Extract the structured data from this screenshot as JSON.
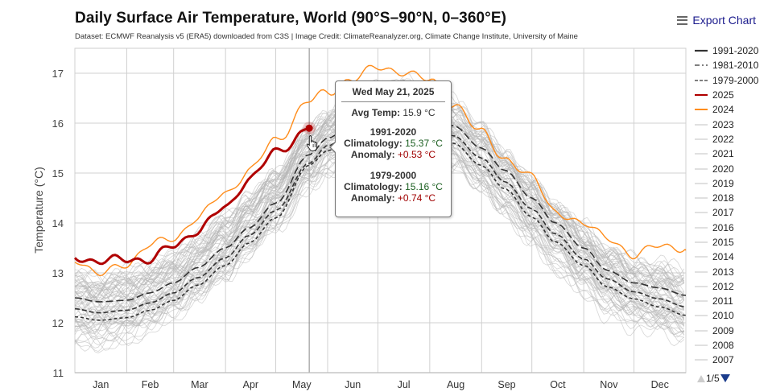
{
  "header": {
    "title": "Daily Surface Air Temperature, World (90°S–90°N, 0–360°E)",
    "subtitle": "Dataset: ECMWF Reanalysis v5 (ERA5) downloaded from C3S | Image Credit: ClimateReanalyzer.org, Climate Change Institute, University of Maine",
    "export_label": "Export Chart",
    "export_icon": "hamburger-menu-icon"
  },
  "legend": {
    "items": [
      {
        "label": "1991-2020",
        "color": "#333333",
        "style": "solid-thick"
      },
      {
        "label": "1981-2010",
        "color": "#333333",
        "style": "dash-dot"
      },
      {
        "label": "1979-2000",
        "color": "#333333",
        "style": "short-dash"
      },
      {
        "label": "2025",
        "color": "#b00000",
        "style": "solid-thick"
      },
      {
        "label": "2024",
        "color": "#ff8c1a",
        "style": "solid"
      },
      {
        "label": "2023",
        "color": "#cccccc",
        "style": "solid"
      },
      {
        "label": "2022",
        "color": "#cccccc",
        "style": "solid"
      },
      {
        "label": "2021",
        "color": "#cccccc",
        "style": "solid"
      },
      {
        "label": "2020",
        "color": "#cccccc",
        "style": "solid"
      },
      {
        "label": "2019",
        "color": "#cccccc",
        "style": "solid"
      },
      {
        "label": "2018",
        "color": "#cccccc",
        "style": "solid"
      },
      {
        "label": "2017",
        "color": "#cccccc",
        "style": "solid"
      },
      {
        "label": "2016",
        "color": "#cccccc",
        "style": "solid"
      },
      {
        "label": "2015",
        "color": "#cccccc",
        "style": "solid"
      },
      {
        "label": "2014",
        "color": "#cccccc",
        "style": "solid"
      },
      {
        "label": "2013",
        "color": "#cccccc",
        "style": "solid"
      },
      {
        "label": "2012",
        "color": "#cccccc",
        "style": "solid"
      },
      {
        "label": "2011",
        "color": "#cccccc",
        "style": "solid"
      },
      {
        "label": "2010",
        "color": "#cccccc",
        "style": "solid"
      },
      {
        "label": "2009",
        "color": "#cccccc",
        "style": "solid"
      },
      {
        "label": "2008",
        "color": "#cccccc",
        "style": "solid"
      },
      {
        "label": "2007",
        "color": "#cccccc",
        "style": "solid"
      }
    ],
    "page_indicator": "1/5"
  },
  "tooltip": {
    "date": "Wed May 21, 2025",
    "avg_label": "Avg Temp:",
    "avg_value": "15.9 °C",
    "blocks": [
      {
        "period": "1991-2020",
        "clim_label": "Climatology:",
        "clim_value": "15.37 °C",
        "anom_label": "Anomaly:",
        "anom_value": "+0.53 °C"
      },
      {
        "period": "1979-2000",
        "clim_label": "Climatology:",
        "clim_value": "15.16 °C",
        "anom_label": "Anomaly:",
        "anom_value": "+0.74 °C"
      }
    ]
  },
  "chart_data": {
    "type": "line",
    "title": "Daily Surface Air Temperature, World (90°S–90°N, 0–360°E)",
    "xlabel": "",
    "ylabel": "Temperature (°C)",
    "ylim": [
      11,
      17.5
    ],
    "yticks": [
      11,
      12,
      13,
      14,
      15,
      16,
      17
    ],
    "xlim_day_of_year": [
      1,
      366
    ],
    "x_month_labels": [
      "Jan",
      "Feb",
      "Mar",
      "Apr",
      "May",
      "Jun",
      "Jul",
      "Aug",
      "Sep",
      "Oct",
      "Nov",
      "Dec"
    ],
    "month_start_days": [
      1,
      32,
      60,
      91,
      121,
      152,
      182,
      213,
      244,
      274,
      305,
      335,
      366
    ],
    "grid": true,
    "legend_position": "right",
    "hover_day": 141,
    "hover_value": 15.9,
    "anchor_days": [
      1,
      15,
      32,
      46,
      60,
      74,
      91,
      105,
      121,
      141,
      152,
      166,
      182,
      196,
      213,
      227,
      244,
      258,
      274,
      288,
      305,
      319,
      335,
      350,
      366
    ],
    "series": [
      {
        "name": "1991-2020",
        "style": "climatology",
        "values": [
          12.5,
          12.42,
          12.45,
          12.6,
          12.8,
          13.1,
          13.5,
          13.9,
          14.4,
          15.37,
          15.7,
          15.95,
          16.15,
          16.25,
          16.15,
          15.95,
          15.5,
          15.05,
          14.5,
          14.0,
          13.5,
          13.05,
          12.8,
          12.7,
          12.55
        ]
      },
      {
        "name": "1981-2010",
        "style": "climatology",
        "values": [
          12.28,
          12.2,
          12.25,
          12.4,
          12.6,
          12.9,
          13.3,
          13.75,
          14.25,
          15.2,
          15.55,
          15.8,
          16.0,
          16.08,
          15.98,
          15.75,
          15.3,
          14.82,
          14.28,
          13.78,
          13.28,
          12.88,
          12.62,
          12.48,
          12.32
        ]
      },
      {
        "name": "1979-2000",
        "style": "climatology",
        "values": [
          12.12,
          12.05,
          12.1,
          12.25,
          12.45,
          12.75,
          13.15,
          13.6,
          14.1,
          15.16,
          15.45,
          15.7,
          15.92,
          15.98,
          15.85,
          15.6,
          15.15,
          14.68,
          14.12,
          13.62,
          13.15,
          12.72,
          12.48,
          12.32,
          12.15
        ]
      },
      {
        "name": "2025",
        "style": "current",
        "values": [
          13.35,
          13.2,
          13.3,
          13.25,
          13.55,
          13.85,
          14.3,
          14.9,
          15.4,
          15.9
        ]
      },
      {
        "name": "2024",
        "style": "previous",
        "values": [
          13.3,
          12.95,
          13.2,
          13.55,
          13.7,
          14.1,
          14.6,
          15.05,
          15.65,
          16.45,
          16.6,
          16.9,
          17.1,
          17.05,
          16.85,
          16.4,
          15.8,
          15.3,
          14.9,
          14.25,
          13.95,
          13.75,
          13.3,
          13.6,
          13.45
        ]
      }
    ],
    "historical_years": [
      "1940-2023"
    ],
    "historical_band": {
      "low": [
        11.5,
        11.45,
        11.55,
        11.75,
        12.0,
        12.3,
        12.75,
        13.25,
        13.8,
        14.6,
        14.95,
        15.2,
        15.4,
        15.45,
        15.3,
        15.0,
        14.5,
        14.05,
        13.5,
        13.0,
        12.55,
        12.1,
        11.85,
        11.7,
        11.5
      ],
      "high": [
        13.05,
        13.0,
        13.1,
        13.25,
        13.45,
        13.8,
        14.2,
        14.6,
        15.1,
        15.95,
        16.3,
        16.6,
        16.85,
        16.9,
        16.7,
        16.5,
        16.0,
        15.5,
        14.95,
        14.5,
        14.0,
        13.6,
        13.35,
        13.25,
        13.05
      ]
    }
  }
}
